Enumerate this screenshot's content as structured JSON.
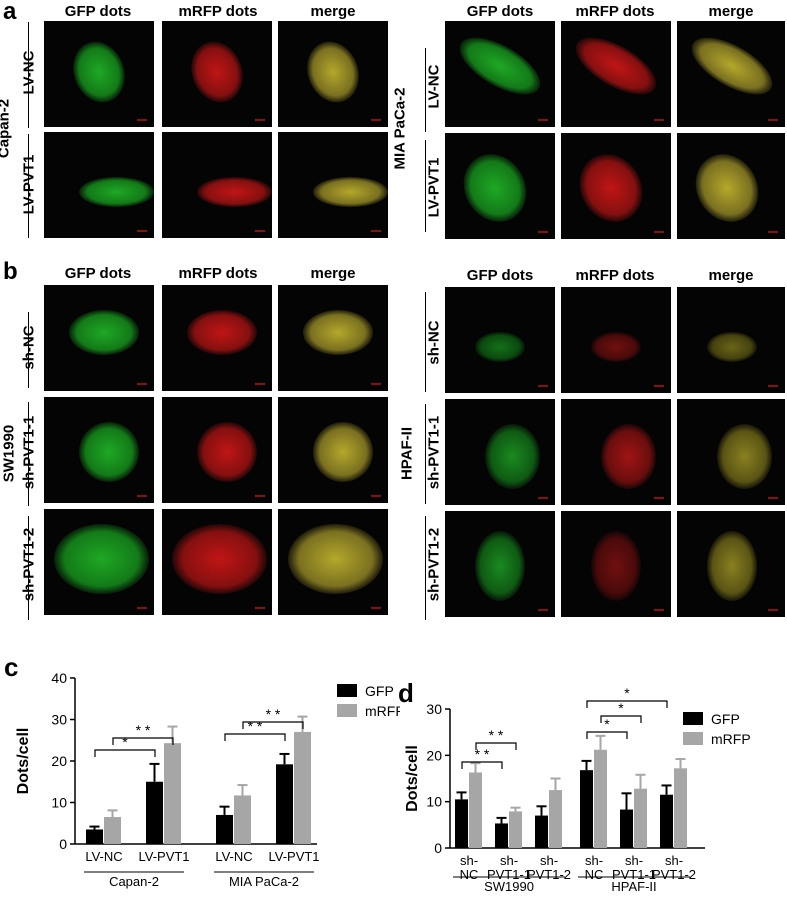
{
  "panel_a": {
    "letter": "a",
    "left": {
      "cell_line": "Capan-2",
      "rows": [
        "LV-NC",
        "LV-PVT1"
      ]
    },
    "right": {
      "cell_line": "MIA PaCa-2",
      "rows": [
        "LV-NC",
        "LV-PVT1"
      ]
    },
    "columns": [
      "GFP dots",
      "mRFP dots",
      "merge"
    ]
  },
  "panel_b": {
    "letter": "b",
    "left": {
      "cell_line": "SW1990",
      "rows": [
        "sh-NC",
        "sh-PVT1-1",
        "sh-PVT1-2"
      ]
    },
    "right": {
      "cell_line": "HPAF-II",
      "rows": [
        "sh-NC",
        "sh-PVT1-1",
        "sh-PVT1-2"
      ]
    },
    "columns": [
      "GFP dots",
      "mRFP dots",
      "merge"
    ]
  },
  "colors": {
    "gfp_bar": "#000000",
    "mrfp_bar": "#a6a6a6",
    "green": "#22b02a",
    "red": "#d01818",
    "merge": "#b4a82a"
  },
  "chart_data": [
    {
      "panel": "c",
      "type": "bar",
      "ylabel": "Dots/cell",
      "ylim": [
        0,
        40
      ],
      "yticks": [
        0,
        10,
        20,
        30,
        40
      ],
      "categories": [
        "LV-NC",
        "LV-PVT1",
        "LV-NC",
        "LV-PVT1"
      ],
      "groups": [
        "Capan-2",
        "MIA PaCa-2"
      ],
      "series": [
        {
          "name": "GFP",
          "values": [
            3.5,
            15,
            7,
            19.2
          ],
          "errors": [
            0.7,
            4.3,
            2,
            2.5
          ]
        },
        {
          "name": "mRFP",
          "values": [
            6.5,
            24.3,
            11.7,
            27
          ],
          "errors": [
            1.6,
            4,
            2.5,
            3.7
          ]
        }
      ],
      "significance": [
        {
          "from": 0,
          "to": 1,
          "label": "*"
        },
        {
          "from": 0,
          "to": 1,
          "label": "* *"
        },
        {
          "from": 2,
          "to": 3,
          "label": "* *"
        },
        {
          "from": 2,
          "to": 3,
          "label": "* *"
        }
      ],
      "legend": "top-right"
    },
    {
      "panel": "d",
      "type": "bar",
      "ylabel": "Dots/cell",
      "ylim": [
        0,
        30
      ],
      "yticks": [
        0,
        10,
        20,
        30
      ],
      "categories": [
        [
          "sh-",
          "NC"
        ],
        [
          "sh-",
          "PVT1-1"
        ],
        [
          "sh-",
          "PVT1-2"
        ],
        [
          "sh-",
          "NC"
        ],
        [
          "sh-",
          "PVT1-1"
        ],
        [
          "sh-",
          "PVT1-2"
        ]
      ],
      "groups": [
        "SW1990",
        "HPAF-II"
      ],
      "series": [
        {
          "name": "GFP",
          "values": [
            10.5,
            5.3,
            7,
            16.8,
            8.3,
            11.5
          ],
          "errors": [
            1.5,
            1.2,
            2,
            2,
            3.5,
            2
          ]
        },
        {
          "name": "mRFP",
          "values": [
            16.3,
            7.9,
            12.5,
            21.2,
            12.8,
            17.2
          ],
          "errors": [
            2,
            0.8,
            2.5,
            3,
            3,
            2
          ]
        }
      ],
      "significance": [
        {
          "from": 0,
          "to": 1,
          "label": "* *"
        },
        {
          "from": 0,
          "to": 1,
          "label": "* *"
        },
        {
          "from": 3,
          "to": 4,
          "label": "*"
        },
        {
          "from": 3,
          "to": 4,
          "label": "*"
        },
        {
          "from": 3,
          "to": 5,
          "label": "*"
        }
      ],
      "legend": "top-right"
    }
  ]
}
